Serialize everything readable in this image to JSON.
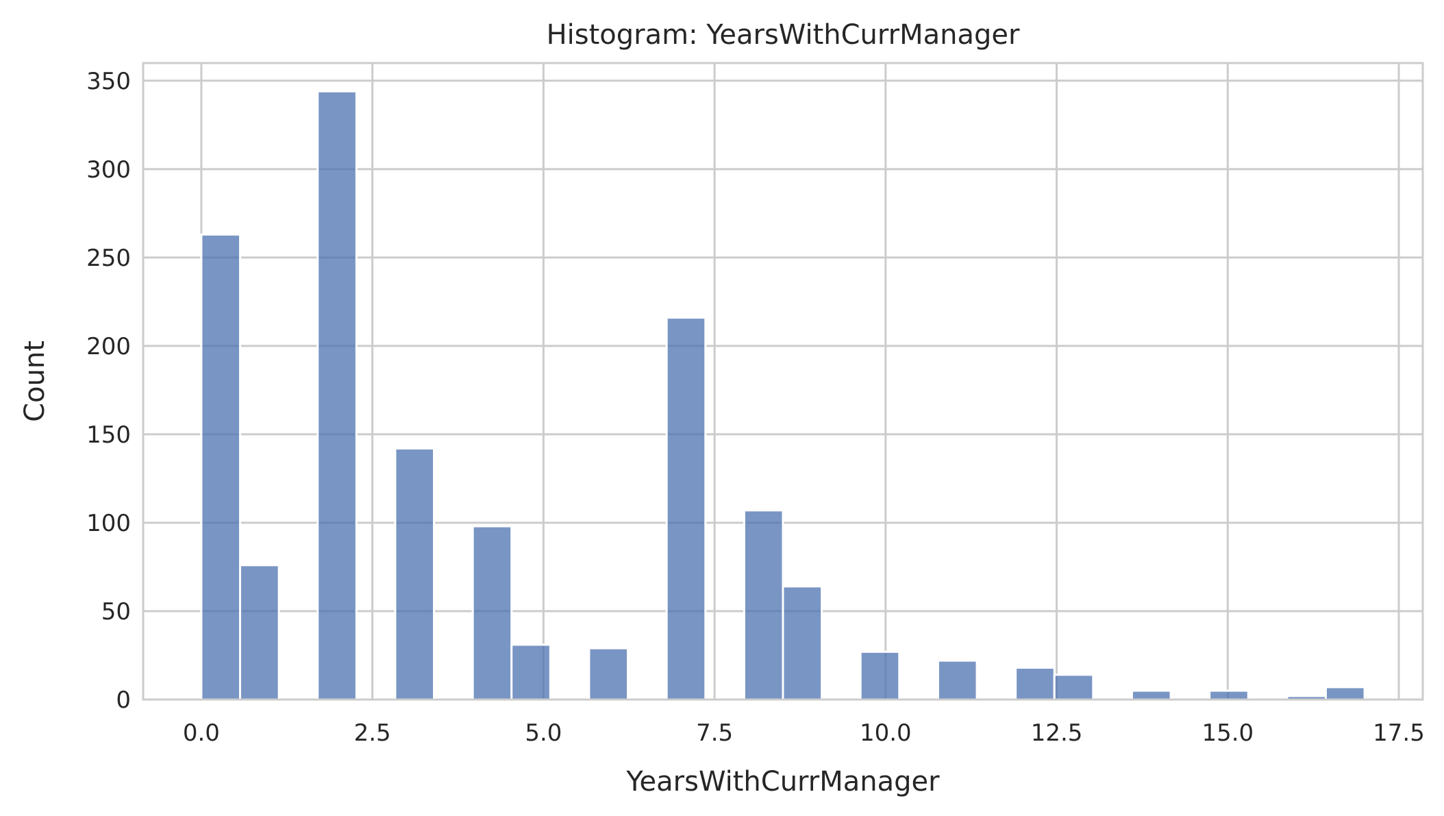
{
  "chart_data": {
    "type": "bar",
    "title": "Histogram: YearsWithCurrManager",
    "xlabel": "YearsWithCurrManager",
    "ylabel": "Count",
    "xlim": [
      -0.85,
      17.85
    ],
    "ylim": [
      0,
      360
    ],
    "grid": true,
    "bar_color": "#4c72b0",
    "xticks": [
      0.0,
      2.5,
      5.0,
      7.5,
      10.0,
      12.5,
      15.0,
      17.5
    ],
    "xtick_labels": [
      "0.0",
      "2.5",
      "5.0",
      "7.5",
      "10.0",
      "12.5",
      "15.0",
      "17.5"
    ],
    "yticks": [
      0,
      50,
      100,
      150,
      200,
      250,
      300,
      350
    ],
    "ytick_labels": [
      "0",
      "50",
      "100",
      "150",
      "200",
      "250",
      "300",
      "350"
    ],
    "bin_width": 0.5667,
    "bins": [
      {
        "x0": 0.0,
        "count": 263
      },
      {
        "x0": 0.5667,
        "count": 76
      },
      {
        "x0": 1.1333,
        "count": 0
      },
      {
        "x0": 1.7,
        "count": 344
      },
      {
        "x0": 2.2667,
        "count": 0
      },
      {
        "x0": 2.8333,
        "count": 142
      },
      {
        "x0": 3.4,
        "count": 0
      },
      {
        "x0": 3.9667,
        "count": 98
      },
      {
        "x0": 4.5333,
        "count": 31
      },
      {
        "x0": 5.1,
        "count": 0
      },
      {
        "x0": 5.6667,
        "count": 29
      },
      {
        "x0": 6.2333,
        "count": 0
      },
      {
        "x0": 6.8,
        "count": 216
      },
      {
        "x0": 7.3667,
        "count": 0
      },
      {
        "x0": 7.9333,
        "count": 107
      },
      {
        "x0": 8.5,
        "count": 64
      },
      {
        "x0": 9.0667,
        "count": 0
      },
      {
        "x0": 9.6333,
        "count": 27
      },
      {
        "x0": 10.2,
        "count": 0
      },
      {
        "x0": 10.7667,
        "count": 22
      },
      {
        "x0": 11.3333,
        "count": 0
      },
      {
        "x0": 11.9,
        "count": 18
      },
      {
        "x0": 12.4667,
        "count": 14
      },
      {
        "x0": 13.0333,
        "count": 0
      },
      {
        "x0": 13.6,
        "count": 5
      },
      {
        "x0": 14.1667,
        "count": 0
      },
      {
        "x0": 14.7333,
        "count": 5
      },
      {
        "x0": 15.3,
        "count": 0
      },
      {
        "x0": 15.8667,
        "count": 2
      },
      {
        "x0": 16.4333,
        "count": 7
      }
    ]
  }
}
